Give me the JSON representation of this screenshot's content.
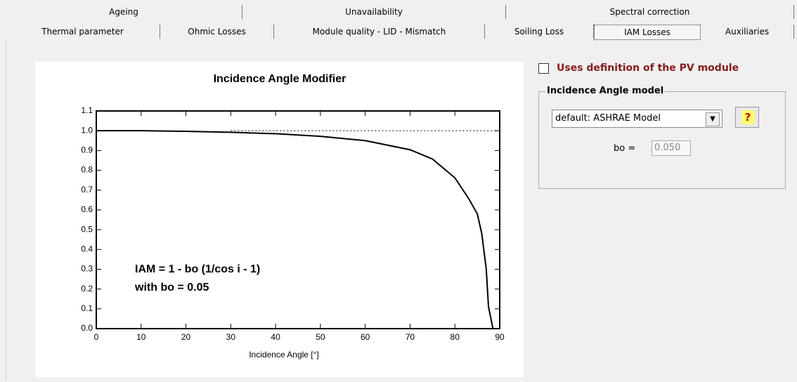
{
  "tabs_row1": [
    "Ageing",
    "Unavailability",
    "Spectral correction"
  ],
  "tabs_row2": [
    "Thermal parameter",
    "Ohmic Losses",
    "Module quality - LID - Mismatch",
    "Soiling Loss",
    "IAM Losses",
    "Auxiliaries"
  ],
  "checkbox": {
    "label": "Uses definition of the PV module"
  },
  "group": {
    "title": "Incidence Angle model",
    "select": "default: ASHRAE Model",
    "help": "?",
    "bo_label": "bo =",
    "bo_value": "0.050"
  },
  "chart_data": {
    "type": "line",
    "title": "Incidence Angle Modifier",
    "x_label": "Incidence Angle [°]",
    "annotations": [
      "IAM = 1 - bo (1/cos i - 1)",
      "with bo = 0.05"
    ],
    "x": [
      0,
      10,
      20,
      30,
      40,
      50,
      60,
      70,
      75,
      80,
      83,
      85,
      86,
      87,
      87.5,
      88.5
    ],
    "values": [
      1.0,
      1.0,
      0.997,
      0.992,
      0.985,
      0.972,
      0.95,
      0.904,
      0.857,
      0.762,
      0.66,
      0.58,
      0.48,
      0.3,
      0.11,
      0.0
    ],
    "color": "#000000",
    "xlim": [
      0,
      90
    ],
    "xticks": [
      0,
      10,
      20,
      30,
      40,
      50,
      60,
      70,
      80,
      90
    ],
    "ylim": [
      0,
      1.1
    ],
    "yticks": [
      {
        "value": 0,
        "label": "0.0"
      },
      0.1,
      0.2,
      0.3,
      0.4,
      0.5,
      0.6,
      0.7,
      0.8,
      0.9,
      {
        "value": 1,
        "label": "1.0"
      },
      1.1
    ]
  }
}
